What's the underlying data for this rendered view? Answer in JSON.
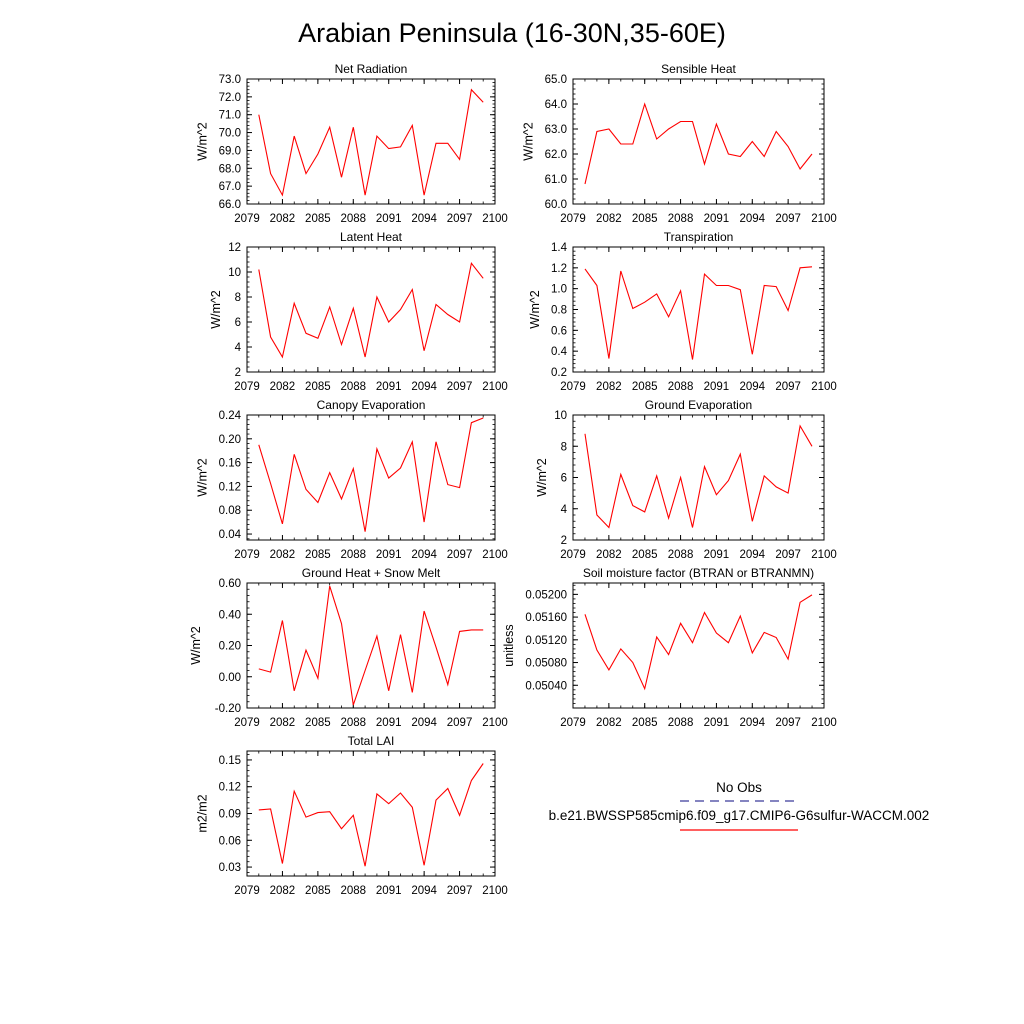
{
  "figure_title": "Arabian Peninsula (16-30N,35-60E)",
  "legend": {
    "obs_label": "No Obs",
    "model_label": "b.e21.BWSSP585cmip6.f09_g17.CMIP6-G6sulfur-WACCM.002",
    "obs_color": "#3a3a9a",
    "model_color": "#ff0000"
  },
  "chart_data": [
    {
      "type": "line",
      "title": "Net Radiation",
      "ylabel": "W/m^2",
      "xlim": [
        2079,
        2100
      ],
      "ylim": [
        66.0,
        73.0
      ],
      "xticks": [
        "2079",
        "2082",
        "2085",
        "2088",
        "2091",
        "2094",
        "2097",
        "2100"
      ],
      "yticks": [
        "66.0",
        "67.0",
        "68.0",
        "69.0",
        "70.0",
        "71.0",
        "72.0",
        "73.0"
      ],
      "x": [
        2080,
        2081,
        2082,
        2083,
        2084,
        2085,
        2086,
        2087,
        2088,
        2089,
        2090,
        2091,
        2092,
        2093,
        2094,
        2095,
        2096,
        2097,
        2098,
        2099
      ],
      "series": [
        {
          "values": [
            71.0,
            67.7,
            66.5,
            69.8,
            67.7,
            68.8,
            70.3,
            67.5,
            70.3,
            66.5,
            69.8,
            69.1,
            69.2,
            70.4,
            66.5,
            69.4,
            69.4,
            68.5,
            72.4,
            71.7
          ]
        }
      ]
    },
    {
      "type": "line",
      "title": "Sensible Heat",
      "ylabel": "W/m^2",
      "xlim": [
        2079,
        2100
      ],
      "ylim": [
        60.0,
        65.0
      ],
      "xticks": [
        "2079",
        "2082",
        "2085",
        "2088",
        "2091",
        "2094",
        "2097",
        "2100"
      ],
      "yticks": [
        "60.0",
        "61.0",
        "62.0",
        "63.0",
        "64.0",
        "65.0"
      ],
      "x": [
        2080,
        2081,
        2082,
        2083,
        2084,
        2085,
        2086,
        2087,
        2088,
        2089,
        2090,
        2091,
        2092,
        2093,
        2094,
        2095,
        2096,
        2097,
        2098,
        2099
      ],
      "series": [
        {
          "values": [
            60.8,
            62.9,
            63.0,
            62.4,
            62.4,
            64.0,
            62.6,
            63.0,
            63.3,
            63.3,
            61.6,
            63.2,
            62.0,
            61.9,
            62.5,
            61.9,
            62.9,
            62.3,
            61.4,
            62.0
          ]
        }
      ]
    },
    {
      "type": "line",
      "title": "Latent Heat",
      "ylabel": "W/m^2",
      "xlim": [
        2079,
        2100
      ],
      "ylim": [
        2,
        12
      ],
      "xticks": [
        "2079",
        "2082",
        "2085",
        "2088",
        "2091",
        "2094",
        "2097",
        "2100"
      ],
      "yticks": [
        "2",
        "4",
        "6",
        "8",
        "10",
        "12"
      ],
      "x": [
        2080,
        2081,
        2082,
        2083,
        2084,
        2085,
        2086,
        2087,
        2088,
        2089,
        2090,
        2091,
        2092,
        2093,
        2094,
        2095,
        2096,
        2097,
        2098,
        2099
      ],
      "series": [
        {
          "values": [
            10.2,
            4.8,
            3.2,
            7.5,
            5.1,
            4.7,
            7.2,
            4.2,
            7.1,
            3.2,
            8.0,
            6.0,
            7.0,
            8.6,
            3.7,
            7.4,
            6.6,
            6.0,
            10.7,
            9.5
          ]
        }
      ]
    },
    {
      "type": "line",
      "title": "Transpiration",
      "ylabel": "W/m^2",
      "xlim": [
        2079,
        2100
      ],
      "ylim": [
        0.2,
        1.4
      ],
      "xticks": [
        "2079",
        "2082",
        "2085",
        "2088",
        "2091",
        "2094",
        "2097",
        "2100"
      ],
      "yticks": [
        "0.2",
        "0.4",
        "0.6",
        "0.8",
        "1.0",
        "1.2",
        "1.4"
      ],
      "x": [
        2080,
        2081,
        2082,
        2083,
        2084,
        2085,
        2086,
        2087,
        2088,
        2089,
        2090,
        2091,
        2092,
        2093,
        2094,
        2095,
        2096,
        2097,
        2098,
        2099
      ],
      "series": [
        {
          "values": [
            1.19,
            1.03,
            0.33,
            1.17,
            0.81,
            0.87,
            0.95,
            0.73,
            0.98,
            0.32,
            1.14,
            1.03,
            1.03,
            0.99,
            0.37,
            1.03,
            1.02,
            0.79,
            1.2,
            1.21
          ]
        }
      ]
    },
    {
      "type": "line",
      "title": "Canopy Evaporation",
      "ylabel": "W/m^2",
      "xlim": [
        2079,
        2100
      ],
      "ylim": [
        0.03,
        0.24
      ],
      "xticks": [
        "2079",
        "2082",
        "2085",
        "2088",
        "2091",
        "2094",
        "2097",
        "2100"
      ],
      "yticks": [
        "0.04",
        "0.08",
        "0.12",
        "0.16",
        "0.20",
        "0.24"
      ],
      "x": [
        2080,
        2081,
        2082,
        2083,
        2084,
        2085,
        2086,
        2087,
        2088,
        2089,
        2090,
        2091,
        2092,
        2093,
        2094,
        2095,
        2096,
        2097,
        2098,
        2099
      ],
      "series": [
        {
          "values": [
            0.19,
            0.125,
            0.057,
            0.174,
            0.115,
            0.093,
            0.143,
            0.099,
            0.15,
            0.044,
            0.183,
            0.134,
            0.151,
            0.195,
            0.06,
            0.195,
            0.123,
            0.118,
            0.227,
            0.235
          ]
        }
      ]
    },
    {
      "type": "line",
      "title": "Ground Evaporation",
      "ylabel": "W/m^2",
      "xlim": [
        2079,
        2100
      ],
      "ylim": [
        2,
        10
      ],
      "xticks": [
        "2079",
        "2082",
        "2085",
        "2088",
        "2091",
        "2094",
        "2097",
        "2100"
      ],
      "yticks": [
        "2",
        "4",
        "6",
        "8",
        "10"
      ],
      "x": [
        2080,
        2081,
        2082,
        2083,
        2084,
        2085,
        2086,
        2087,
        2088,
        2089,
        2090,
        2091,
        2092,
        2093,
        2094,
        2095,
        2096,
        2097,
        2098,
        2099
      ],
      "series": [
        {
          "values": [
            8.8,
            3.6,
            2.8,
            6.2,
            4.2,
            3.8,
            6.1,
            3.4,
            6.0,
            2.8,
            6.7,
            4.9,
            5.8,
            7.5,
            3.2,
            6.1,
            5.4,
            5.0,
            9.3,
            8.0
          ]
        }
      ]
    },
    {
      "type": "line",
      "title": "Ground Heat + Snow Melt",
      "ylabel": "W/m^2",
      "xlim": [
        2079,
        2100
      ],
      "ylim": [
        -0.2,
        0.6
      ],
      "xticks": [
        "2079",
        "2082",
        "2085",
        "2088",
        "2091",
        "2094",
        "2097",
        "2100"
      ],
      "yticks": [
        "-0.20",
        "0.00",
        "0.20",
        "0.40",
        "0.60"
      ],
      "x": [
        2080,
        2081,
        2082,
        2083,
        2084,
        2085,
        2086,
        2087,
        2088,
        2089,
        2090,
        2091,
        2092,
        2093,
        2094,
        2095,
        2096,
        2097,
        2098,
        2099
      ],
      "series": [
        {
          "values": [
            0.05,
            0.03,
            0.36,
            -0.09,
            0.17,
            -0.01,
            0.58,
            0.34,
            -0.18,
            0.04,
            0.26,
            -0.09,
            0.27,
            -0.1,
            0.42,
            0.19,
            -0.05,
            0.29,
            0.3,
            0.3
          ]
        }
      ]
    },
    {
      "type": "line",
      "title": "Soil moisture factor (BTRAN or BTRANMN)",
      "ylabel": "unitless",
      "xlim": [
        2079,
        2100
      ],
      "ylim": [
        0.05,
        0.0522
      ],
      "xticks": [
        "2079",
        "2082",
        "2085",
        "2088",
        "2091",
        "2094",
        "2097",
        "2100"
      ],
      "yticks": [
        "0.05040",
        "0.05080",
        "0.05120",
        "0.05160",
        "0.05200"
      ],
      "x": [
        2080,
        2081,
        2082,
        2083,
        2084,
        2085,
        2086,
        2087,
        2088,
        2089,
        2090,
        2091,
        2092,
        2093,
        2094,
        2095,
        2096,
        2097,
        2098,
        2099
      ],
      "series": [
        {
          "values": [
            0.05165,
            0.05102,
            0.05067,
            0.05104,
            0.0508,
            0.05034,
            0.05125,
            0.05094,
            0.05149,
            0.05115,
            0.05168,
            0.05132,
            0.05115,
            0.05162,
            0.05097,
            0.05133,
            0.05124,
            0.05086,
            0.05186,
            0.05199
          ]
        }
      ]
    },
    {
      "type": "line",
      "title": "Total LAI",
      "ylabel": "m2/m2",
      "xlim": [
        2079,
        2100
      ],
      "ylim": [
        0.02,
        0.16
      ],
      "xticks": [
        "2079",
        "2082",
        "2085",
        "2088",
        "2091",
        "2094",
        "2097",
        "2100"
      ],
      "yticks": [
        "0.03",
        "0.06",
        "0.09",
        "0.12",
        "0.15"
      ],
      "x": [
        2080,
        2081,
        2082,
        2083,
        2084,
        2085,
        2086,
        2087,
        2088,
        2089,
        2090,
        2091,
        2092,
        2093,
        2094,
        2095,
        2096,
        2097,
        2098,
        2099
      ],
      "series": [
        {
          "values": [
            0.094,
            0.095,
            0.034,
            0.115,
            0.086,
            0.091,
            0.092,
            0.073,
            0.088,
            0.031,
            0.112,
            0.101,
            0.113,
            0.097,
            0.032,
            0.105,
            0.118,
            0.088,
            0.127,
            0.146
          ]
        }
      ]
    }
  ]
}
